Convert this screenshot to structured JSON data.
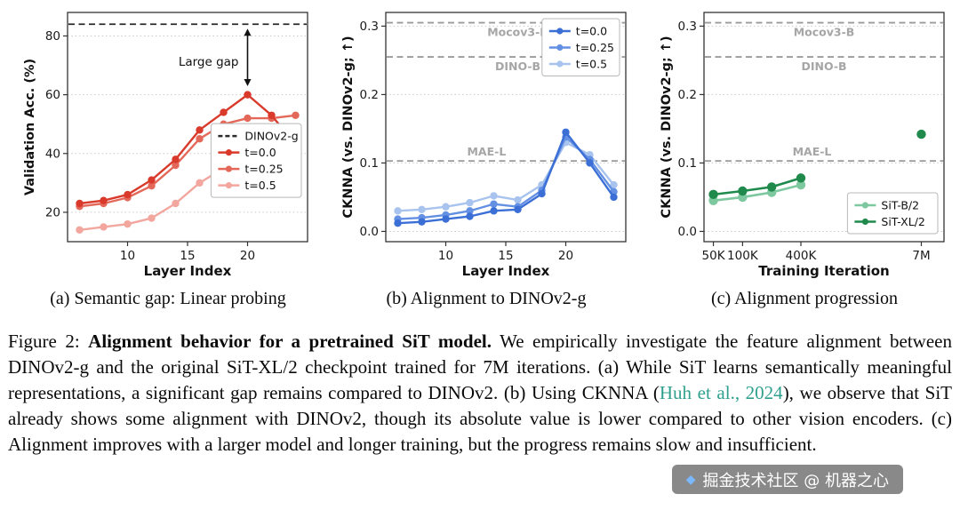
{
  "figure": {
    "subcaptions": [
      "(a) Semantic gap: Linear probing",
      "(b) Alignment to DINOv2-g",
      "(c) Alignment progression"
    ]
  },
  "caption": {
    "prefix": "Figure 2: ",
    "bold_title": "Alignment behavior for a pretrained SiT model.",
    "seg1": " We empirically investigate the feature alignment between DINOv2-g and the original SiT-XL/2 checkpoint trained for 7M iterations. (a) While SiT learns semantically meaningful representations, a significant gap remains compared to DINOv2. (b) Using CKNNA (",
    "cite_text": "Huh et al., 2024",
    "seg2": "), we observe that SiT already shows some alignment with DINOv2, though its absolute value is lower compared to other vision encoders. (c) Alignment improves with a larger model and longer training, but the progress remains slow and insufficient."
  },
  "watermark": {
    "icon": "juejin-gem-icon",
    "text": "掘金技术社区 @ 机器之心"
  },
  "colors": {
    "citation": "#2fa08e",
    "ref_line_gray": "#9b9b9b",
    "ref_label_gray": "#a6a6a6",
    "dashed_black": "#2b2b2b",
    "red_dark": "#d93a2b",
    "red_mid": "#e4685a",
    "red_light": "#f2a69e",
    "blue_dark": "#3b6fd6",
    "blue_mid": "#6490e4",
    "blue_light": "#a8c4ee",
    "green_light": "#7ec8a0",
    "green_dark": "#1f8a4c"
  },
  "chart_data": [
    {
      "id": "a",
      "type": "line",
      "title": "",
      "xlabel": "Layer Index",
      "ylabel": "Validation Acc. (%)",
      "xscale": "linear",
      "xlim": [
        5,
        25
      ],
      "ylim": [
        10,
        88
      ],
      "xticks": [
        10,
        15,
        20
      ],
      "xtick_labels": [
        "10",
        "15",
        "20"
      ],
      "yticks": [
        20,
        40,
        60,
        80
      ],
      "ytick_labels": [
        "20",
        "40",
        "60",
        "80"
      ],
      "grid": "dotted-horizontal",
      "draw_reversed": true,
      "line_w": 2.4,
      "marker_r": 4.2,
      "ref_lines": [
        {
          "y": 84,
          "label": "",
          "name": "DINOv2-g",
          "color": "#2b2b2b"
        }
      ],
      "series": [
        {
          "name": "t=0.0",
          "color": "#d93a2b",
          "x": [
            6,
            8,
            10,
            12,
            14,
            16,
            18,
            20,
            22,
            24
          ],
          "y": [
            23,
            24,
            26,
            31,
            38,
            48,
            54,
            60,
            53,
            43
          ]
        },
        {
          "name": "t=0.25",
          "color": "#e4685a",
          "x": [
            6,
            8,
            10,
            12,
            14,
            16,
            18,
            20,
            22,
            24
          ],
          "y": [
            22,
            23,
            25,
            29,
            36,
            45,
            50,
            52,
            52,
            53
          ]
        },
        {
          "name": "t=0.5",
          "color": "#f2a69e",
          "x": [
            6,
            8,
            10,
            12,
            14,
            16,
            18,
            20,
            22,
            24
          ],
          "y": [
            14,
            15,
            16,
            18,
            23,
            30,
            35,
            40,
            42,
            41
          ]
        }
      ],
      "annotation": {
        "text": "Large gap",
        "x": 20,
        "y_from": 84,
        "y_to": 62,
        "label_y": 71
      },
      "legend": {
        "pos": "mid-right",
        "entries": [
          {
            "label": "DINOv2-g",
            "color": "#2b2b2b",
            "dash": true
          },
          {
            "label": "t=0.0",
            "color": "#d93a2b"
          },
          {
            "label": "t=0.25",
            "color": "#e4685a"
          },
          {
            "label": "t=0.5",
            "color": "#f2a69e"
          }
        ]
      }
    },
    {
      "id": "b",
      "type": "line",
      "title": "",
      "xlabel": "Layer Index",
      "ylabel": "CKNNA (vs. DINOv2-g; ↑)",
      "xscale": "linear",
      "xlim": [
        5,
        25
      ],
      "ylim": [
        -0.015,
        0.32
      ],
      "xticks": [
        10,
        15,
        20
      ],
      "xtick_labels": [
        "10",
        "15",
        "20"
      ],
      "yticks": [
        0,
        0.1,
        0.2,
        0.3
      ],
      "ytick_labels": [
        "0.0",
        "0.1",
        "0.2",
        "0.3"
      ],
      "grid": "dotted-horizontal",
      "draw_reversed": true,
      "line_w": 2.4,
      "marker_r": 4.2,
      "ref_lines": [
        {
          "y": 0.305,
          "label": "Mocov3-B",
          "color": "#9b9b9b",
          "label_pos": "below",
          "label_x": 0.55
        },
        {
          "y": 0.255,
          "label": "DINO-B",
          "color": "#9b9b9b",
          "label_pos": "below",
          "label_x": 0.55
        },
        {
          "y": 0.103,
          "label": "MAE-L",
          "color": "#9b9b9b",
          "label_pos": "above",
          "label_x": 0.42
        }
      ],
      "series": [
        {
          "name": "t=0.0",
          "color": "#3b6fd6",
          "x": [
            6,
            8,
            10,
            12,
            14,
            16,
            18,
            20,
            22,
            24
          ],
          "y": [
            0.012,
            0.014,
            0.018,
            0.022,
            0.03,
            0.032,
            0.055,
            0.145,
            0.1,
            0.05
          ]
        },
        {
          "name": "t=0.25",
          "color": "#6490e4",
          "x": [
            6,
            8,
            10,
            12,
            14,
            16,
            18,
            20,
            22,
            24
          ],
          "y": [
            0.018,
            0.02,
            0.024,
            0.03,
            0.04,
            0.036,
            0.06,
            0.138,
            0.105,
            0.058
          ]
        },
        {
          "name": "t=0.5",
          "color": "#a8c4ee",
          "x": [
            6,
            8,
            10,
            12,
            14,
            16,
            18,
            20,
            22,
            24
          ],
          "y": [
            0.03,
            0.032,
            0.036,
            0.042,
            0.052,
            0.046,
            0.068,
            0.13,
            0.112,
            0.068
          ]
        }
      ],
      "legend": {
        "pos": "top-right",
        "entries": [
          {
            "label": "t=0.0",
            "color": "#3b6fd6"
          },
          {
            "label": "t=0.25",
            "color": "#6490e4"
          },
          {
            "label": "t=0.5",
            "color": "#a8c4ee"
          }
        ]
      }
    },
    {
      "id": "c",
      "type": "line",
      "title": "",
      "xlabel": "Training Iteration",
      "ylabel": "CKNNA (vs. DINOv2-g; ↑)",
      "xscale": "log",
      "xlim": [
        40000,
        12000000
      ],
      "ylim": [
        -0.015,
        0.32
      ],
      "xticks": [
        50000,
        100000,
        400000,
        7000000
      ],
      "xtick_labels": [
        "50K",
        "100K",
        "400K",
        "7M"
      ],
      "yticks": [
        0,
        0.1,
        0.2,
        0.3
      ],
      "ytick_labels": [
        "0.0",
        "0.1",
        "0.2",
        "0.3"
      ],
      "grid": "dotted-horizontal",
      "draw_reversed": false,
      "line_w": 2.6,
      "marker_r": 5.2,
      "ref_lines": [
        {
          "y": 0.305,
          "label": "Mocov3-B",
          "color": "#9b9b9b",
          "label_pos": "below",
          "label_x": 0.5
        },
        {
          "y": 0.255,
          "label": "DINO-B",
          "color": "#9b9b9b",
          "label_pos": "below",
          "label_x": 0.5
        },
        {
          "y": 0.103,
          "label": "MAE-L",
          "color": "#9b9b9b",
          "label_pos": "above",
          "label_x": 0.45
        }
      ],
      "series": [
        {
          "name": "SiT-B/2",
          "color": "#7ec8a0",
          "x": [
            50000,
            100000,
            200000,
            400000
          ],
          "y": [
            0.045,
            0.05,
            0.057,
            0.068
          ]
        },
        {
          "name": "SiT-XL/2",
          "color": "#1f8a4c",
          "x": [
            50000,
            100000,
            200000,
            400000
          ],
          "y": [
            0.054,
            0.059,
            0.065,
            0.078
          ]
        },
        {
          "name": "SiT-XL/2 (7M)",
          "color": "#1f8a4c",
          "x": [
            7000000
          ],
          "y": [
            0.142
          ],
          "line": false
        }
      ],
      "legend": {
        "pos": "bottom-right",
        "entries": [
          {
            "label": "SiT-B/2",
            "color": "#7ec8a0"
          },
          {
            "label": "SiT-XL/2",
            "color": "#1f8a4c"
          }
        ]
      }
    }
  ]
}
